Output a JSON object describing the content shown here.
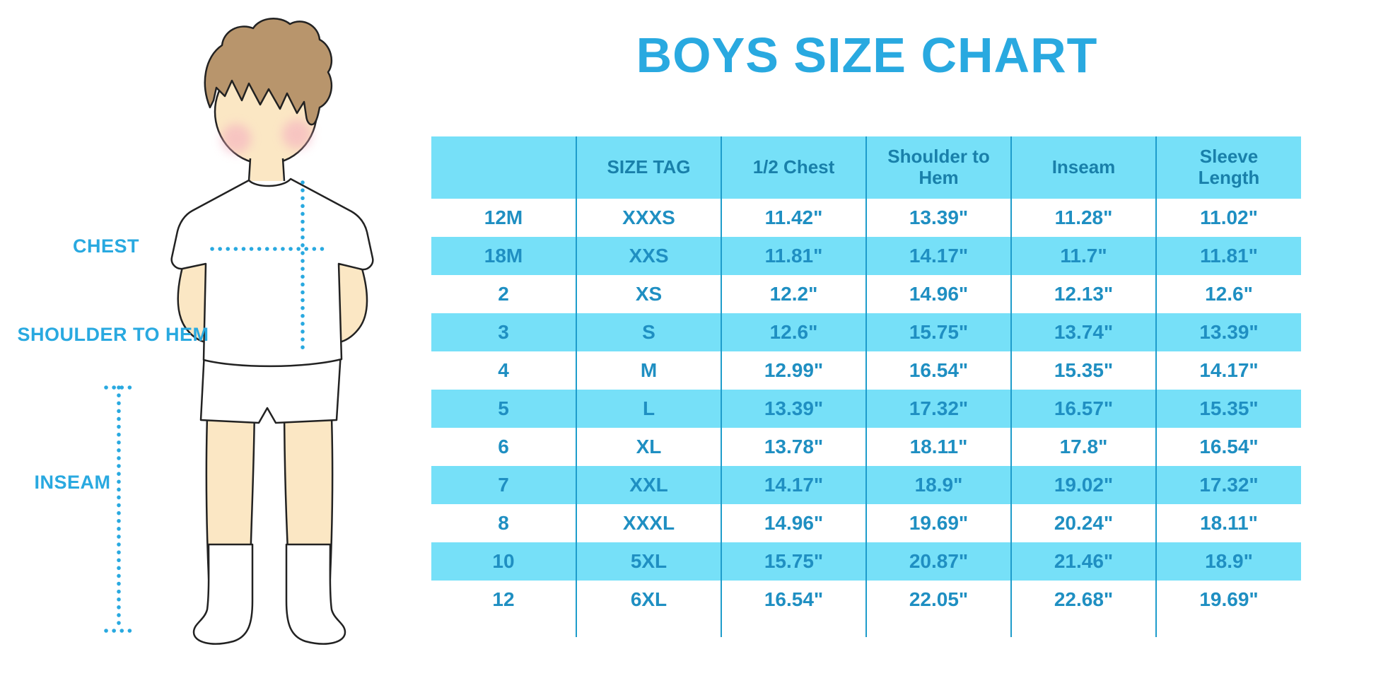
{
  "title": "BOYS SIZE CHART",
  "figure_labels": {
    "chest": "CHEST",
    "shoulder_to_hem": "SHOULDER TO HEM",
    "inseam": "INSEAM"
  },
  "colors": {
    "accent_blue": "#29a9e0",
    "table_fill_cyan": "#76e0f8",
    "table_divider_blue": "#1e9ccb",
    "table_text_blue": "#1f8fc2",
    "header_text_blue": "#1980aa",
    "skin": "#fbe7c4",
    "hair": "#b8956c",
    "blush": "#f4afc0"
  },
  "chart_data": {
    "type": "table",
    "columns": [
      "",
      "SIZE TAG",
      "1/2 Chest",
      "Shoulder to Hem",
      "Inseam",
      "Sleeve Length"
    ],
    "rows": [
      [
        "12M",
        "XXXS",
        "11.42\"",
        "13.39\"",
        "11.28\"",
        "11.02\""
      ],
      [
        "18M",
        "XXS",
        "11.81\"",
        "14.17\"",
        "11.7\"",
        "11.81\""
      ],
      [
        "2",
        "XS",
        "12.2\"",
        "14.96\"",
        "12.13\"",
        "12.6\""
      ],
      [
        "3",
        "S",
        "12.6\"",
        "15.75\"",
        "13.74\"",
        "13.39\""
      ],
      [
        "4",
        "M",
        "12.99\"",
        "16.54\"",
        "15.35\"",
        "14.17\""
      ],
      [
        "5",
        "L",
        "13.39\"",
        "17.32\"",
        "16.57\"",
        "15.35\""
      ],
      [
        "6",
        "XL",
        "13.78\"",
        "18.11\"",
        "17.8\"",
        "16.54\""
      ],
      [
        "7",
        "XXL",
        "14.17\"",
        "18.9\"",
        "19.02\"",
        "17.32\""
      ],
      [
        "8",
        "XXXL",
        "14.96\"",
        "19.69\"",
        "20.24\"",
        "18.11\""
      ],
      [
        "10",
        "5XL",
        "15.75\"",
        "20.87\"",
        "21.46\"",
        "18.9\""
      ],
      [
        "12",
        "6XL",
        "16.54\"",
        "22.05\"",
        "22.68\"",
        "19.69\""
      ]
    ],
    "row_striping": "white / cyan alternating, header cyan",
    "units": "inches"
  }
}
